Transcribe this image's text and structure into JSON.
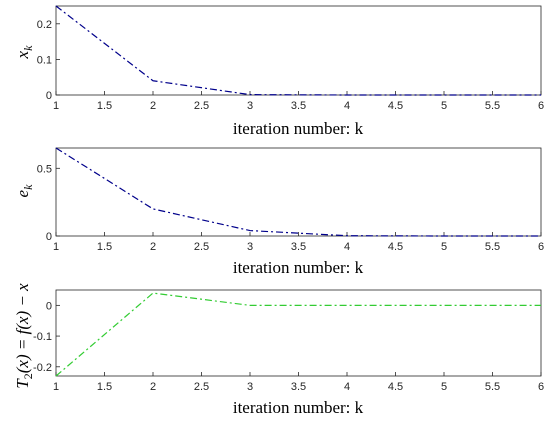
{
  "chart_data": [
    {
      "type": "line",
      "xlabel": "iteration number: k",
      "ylabel": "x_k",
      "ylabel_display": "xk",
      "xlim": [
        1,
        6
      ],
      "ylim": [
        0,
        0.25
      ],
      "xticks": [
        1,
        1.5,
        2,
        2.5,
        3,
        3.5,
        4,
        4.5,
        5,
        5.5,
        6
      ],
      "xticklabels": [
        "1",
        "1.5",
        "2",
        "2.5",
        "3",
        "3.5",
        "4",
        "4.5",
        "5",
        "5.5",
        "6"
      ],
      "yticks": [
        0,
        0.1,
        0.2
      ],
      "yticklabels": [
        "0",
        "0.1",
        "0.2"
      ],
      "grid": false,
      "series": [
        {
          "x": [
            1,
            2,
            3,
            4,
            5,
            6
          ],
          "y": [
            0.25,
            0.04,
            0.001,
            0.0,
            0.0,
            0.0
          ],
          "color": "#00008b",
          "style": "dash-dot"
        }
      ]
    },
    {
      "type": "line",
      "xlabel": "iteration number: k",
      "ylabel": "e_k",
      "ylabel_display": "ek",
      "xlim": [
        1,
        6
      ],
      "ylim": [
        0,
        0.65
      ],
      "xticks": [
        1,
        1.5,
        2,
        2.5,
        3,
        3.5,
        4,
        4.5,
        5,
        5.5,
        6
      ],
      "xticklabels": [
        "1",
        "1.5",
        "2",
        "2.5",
        "3",
        "3.5",
        "4",
        "4.5",
        "5",
        "5.5",
        "6"
      ],
      "yticks": [
        0,
        0.5
      ],
      "yticklabels": [
        "0",
        "0.5"
      ],
      "grid": false,
      "series": [
        {
          "x": [
            1,
            2,
            3,
            4,
            5,
            6
          ],
          "y": [
            0.65,
            0.2,
            0.04,
            0.002,
            0.0,
            0.0
          ],
          "color": "#00008b",
          "style": "dash-dot"
        }
      ]
    },
    {
      "type": "line",
      "xlabel": "iteration number: k",
      "ylabel": "T_2(x) = f(x) − x",
      "ylabel_display": "T2(x) = f(x) − x",
      "xlim": [
        1,
        6
      ],
      "ylim": [
        -0.23,
        0.05
      ],
      "xticks": [
        1,
        1.5,
        2,
        2.5,
        3,
        3.5,
        4,
        4.5,
        5,
        5.5,
        6
      ],
      "xticklabels": [
        "1",
        "1.5",
        "2",
        "2.5",
        "3",
        "3.5",
        "4",
        "4.5",
        "5",
        "5.5",
        "6"
      ],
      "yticks": [
        0,
        -0.1,
        -0.2
      ],
      "yticklabels": [
        "0",
        "-0.1",
        "-0.2"
      ],
      "grid": false,
      "series": [
        {
          "x": [
            1,
            2,
            3,
            4,
            5,
            6
          ],
          "y": [
            -0.23,
            0.04,
            0.0,
            0.0,
            0.0,
            0.0
          ],
          "color": "#33cc33",
          "style": "dash-dot"
        }
      ]
    }
  ]
}
